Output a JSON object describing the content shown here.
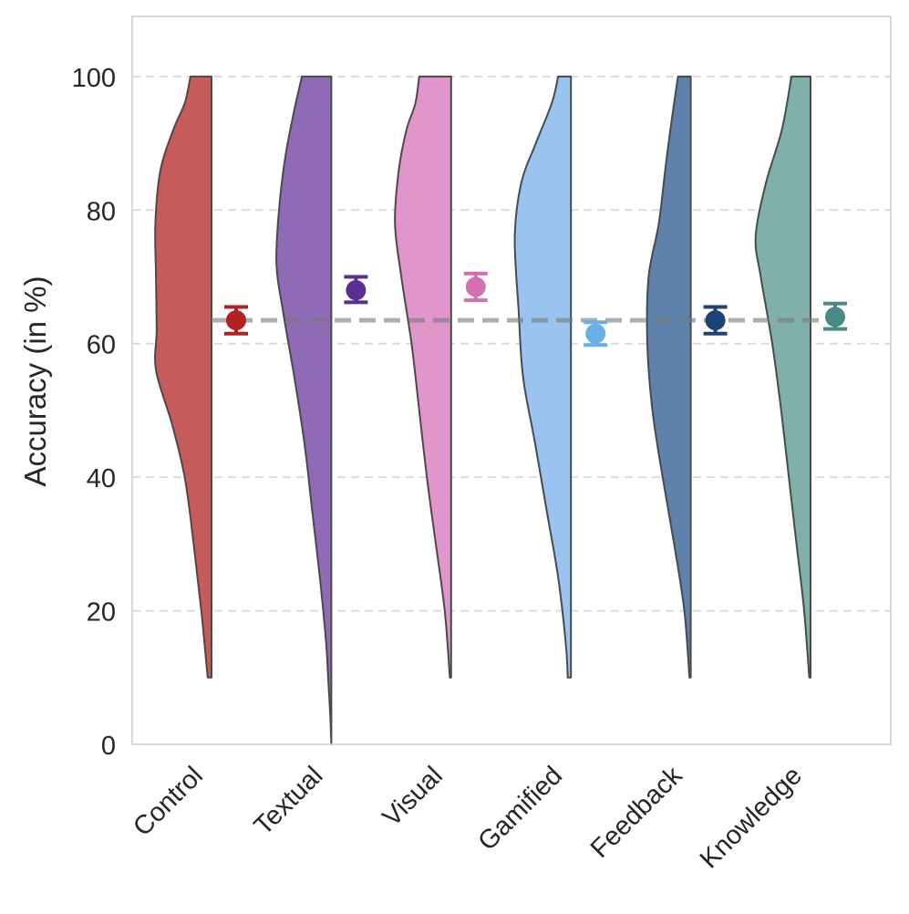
{
  "chart_data": {
    "type": "violin",
    "title": "",
    "xlabel": "",
    "ylabel": "Accuracy (in %)",
    "ylim": [
      0,
      109
    ],
    "yticks": [
      0,
      20,
      40,
      60,
      80,
      100
    ],
    "grid": "horizontal-dashed",
    "reference_line": {
      "value": 63.5,
      "style": "dashed",
      "color": "#9e9e9e"
    },
    "categories": [
      "Control",
      "Textual",
      "Visual",
      "Gamified",
      "Feedback",
      "Knowledge"
    ],
    "series": [
      {
        "name": "Control",
        "color": "#c65b5b",
        "marker_color": "#b22222",
        "mean": 63.5,
        "ci": [
          61.5,
          65.5
        ],
        "range": [
          10,
          100
        ],
        "density": [
          [
            10,
            0.06
          ],
          [
            20,
            0.16
          ],
          [
            30,
            0.28
          ],
          [
            40,
            0.42
          ],
          [
            48,
            0.62
          ],
          [
            56,
            0.87
          ],
          [
            62,
            0.86
          ],
          [
            70,
            0.87
          ],
          [
            78,
            0.88
          ],
          [
            86,
            0.8
          ],
          [
            92,
            0.6
          ],
          [
            96,
            0.42
          ],
          [
            100,
            0.33
          ]
        ]
      },
      {
        "name": "Textual",
        "color": "#8e6bb4",
        "marker_color": "#5a2d91",
        "mean": 68,
        "ci": [
          66.2,
          70
        ],
        "range": [
          0,
          100
        ],
        "density": [
          [
            0,
            0.0
          ],
          [
            5,
            0.02
          ],
          [
            10,
            0.05
          ],
          [
            15,
            0.08
          ],
          [
            25,
            0.18
          ],
          [
            35,
            0.3
          ],
          [
            45,
            0.42
          ],
          [
            55,
            0.58
          ],
          [
            65,
            0.76
          ],
          [
            72,
            0.86
          ],
          [
            80,
            0.82
          ],
          [
            88,
            0.72
          ],
          [
            95,
            0.58
          ],
          [
            100,
            0.46
          ]
        ]
      },
      {
        "name": "Visual",
        "color": "#e096cb",
        "marker_color": "#d36fb3",
        "mean": 68.5,
        "ci": [
          66.5,
          70.5
        ],
        "range": [
          10,
          100
        ],
        "density": [
          [
            10,
            0.02
          ],
          [
            20,
            0.1
          ],
          [
            30,
            0.24
          ],
          [
            40,
            0.38
          ],
          [
            50,
            0.5
          ],
          [
            60,
            0.62
          ],
          [
            70,
            0.78
          ],
          [
            78,
            0.88
          ],
          [
            86,
            0.82
          ],
          [
            92,
            0.7
          ],
          [
            96,
            0.56
          ],
          [
            100,
            0.5
          ]
        ]
      },
      {
        "name": "Gamified",
        "color": "#9ac4ef",
        "marker_color": "#6caee6",
        "mean": 61.5,
        "ci": [
          59.8,
          63.2
        ],
        "range": [
          10,
          100
        ],
        "density": [
          [
            10,
            0.05
          ],
          [
            15,
            0.08
          ],
          [
            25,
            0.2
          ],
          [
            35,
            0.38
          ],
          [
            45,
            0.56
          ],
          [
            55,
            0.75
          ],
          [
            65,
            0.82
          ],
          [
            76,
            0.88
          ],
          [
            84,
            0.78
          ],
          [
            90,
            0.55
          ],
          [
            96,
            0.3
          ],
          [
            100,
            0.2
          ]
        ]
      },
      {
        "name": "Feedback",
        "color": "#5e82ac",
        "marker_color": "#1c4278",
        "mean": 63.5,
        "ci": [
          61.5,
          65.5
        ],
        "range": [
          10,
          100
        ],
        "density": [
          [
            10,
            0.02
          ],
          [
            20,
            0.1
          ],
          [
            30,
            0.26
          ],
          [
            40,
            0.44
          ],
          [
            50,
            0.6
          ],
          [
            60,
            0.68
          ],
          [
            70,
            0.66
          ],
          [
            78,
            0.5
          ],
          [
            86,
            0.4
          ],
          [
            92,
            0.32
          ],
          [
            100,
            0.2
          ]
        ]
      },
      {
        "name": "Knowledge",
        "color": "#81b0ab",
        "marker_color": "#488b86",
        "mean": 64,
        "ci": [
          62.2,
          66
        ],
        "range": [
          10,
          100
        ],
        "density": [
          [
            10,
            0.02
          ],
          [
            20,
            0.1
          ],
          [
            30,
            0.22
          ],
          [
            40,
            0.34
          ],
          [
            50,
            0.46
          ],
          [
            60,
            0.6
          ],
          [
            70,
            0.78
          ],
          [
            76,
            0.86
          ],
          [
            84,
            0.7
          ],
          [
            92,
            0.45
          ],
          [
            100,
            0.3
          ]
        ]
      }
    ]
  }
}
